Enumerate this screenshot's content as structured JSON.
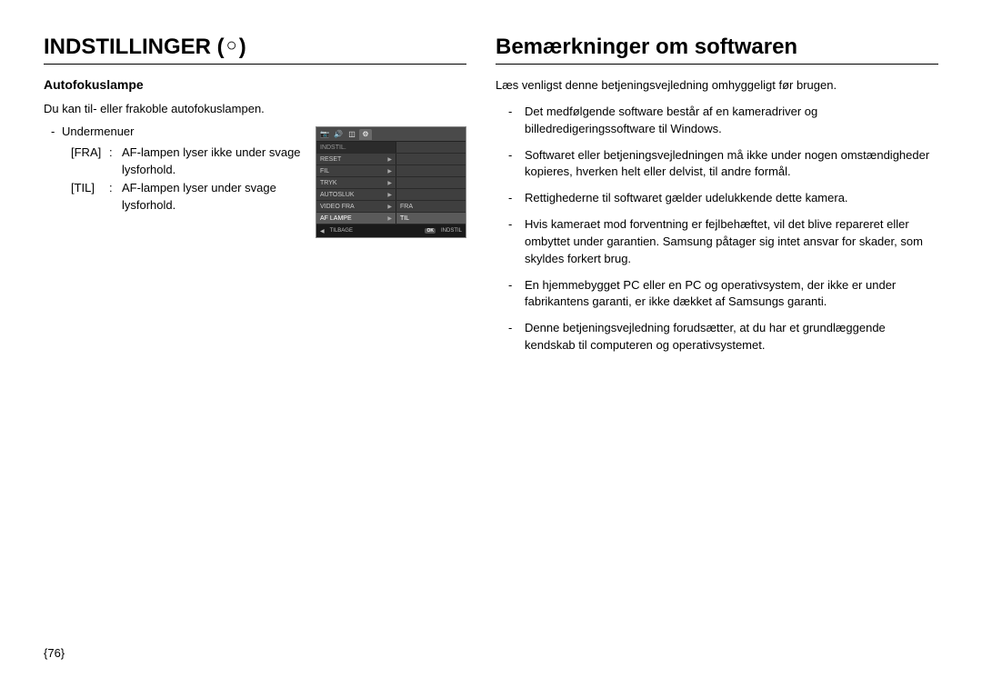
{
  "left": {
    "heading": "INDSTILLINGER (",
    "heading_icon": "○",
    "heading_close": ")",
    "subheading": "Autofokuslampe",
    "intro": "Du kan til- eller frakoble autofokuslampen.",
    "submenu_dash": "-",
    "submenu_label": "Undermenuer",
    "options": [
      {
        "key": "[FRA]",
        "colon": ":",
        "desc": "AF-lampen lyser ikke under svage lysforhold."
      },
      {
        "key": "[TIL]",
        "colon": ":",
        "desc": "AF-lampen lyser under svage lysforhold."
      }
    ]
  },
  "camera": {
    "tabs": [
      "📷",
      "🔊",
      "◫",
      "⚙"
    ],
    "header": "INDSTIL.",
    "rows": [
      {
        "left": "RESET",
        "arrow": "▶",
        "right": ""
      },
      {
        "left": "FIL",
        "arrow": "▶",
        "right": ""
      },
      {
        "left": "TRYK",
        "arrow": "▶",
        "right": ""
      },
      {
        "left": "AUTOSLUK",
        "arrow": "▶",
        "right": ""
      },
      {
        "left": "VIDEO FRA",
        "arrow": "▶",
        "right": "FRA",
        "right_hl": false
      },
      {
        "left": "AF LAMPE",
        "arrow": "▶",
        "left_hl": true,
        "right": "TIL",
        "right_hl": true
      }
    ],
    "footer": {
      "back_icon": "◀",
      "back": "TILBAGE",
      "ok_key": "OK",
      "ok": "INDSTIL"
    }
  },
  "right": {
    "heading": "Bemærkninger om softwaren",
    "intro": "Læs venligst denne betjeningsvejledning omhyggeligt før brugen.",
    "bullets": [
      "Det medfølgende software består af en kameradriver og billedredigeringssoftware til Windows.",
      "Softwaret eller betjeningsvejledningen må ikke under nogen omstændigheder kopieres, hverken helt eller delvist, til andre formål.",
      "Rettighederne til softwaret gælder udelukkende dette kamera.",
      "Hvis kameraet mod forventning er fejlbehæftet, vil det blive repareret eller ombyttet under garantien. Samsung påtager sig intet ansvar for skader, som skyldes forkert brug.",
      "En hjemmebygget PC eller en PC og operativsystem, der ikke er under fabrikantens garanti, er ikke dækket af Samsungs garanti.",
      "Denne betjeningsvejledning forudsætter, at du har et grundlæggende kendskab til computeren og operativsystemet."
    ]
  },
  "page_number": "{76}"
}
